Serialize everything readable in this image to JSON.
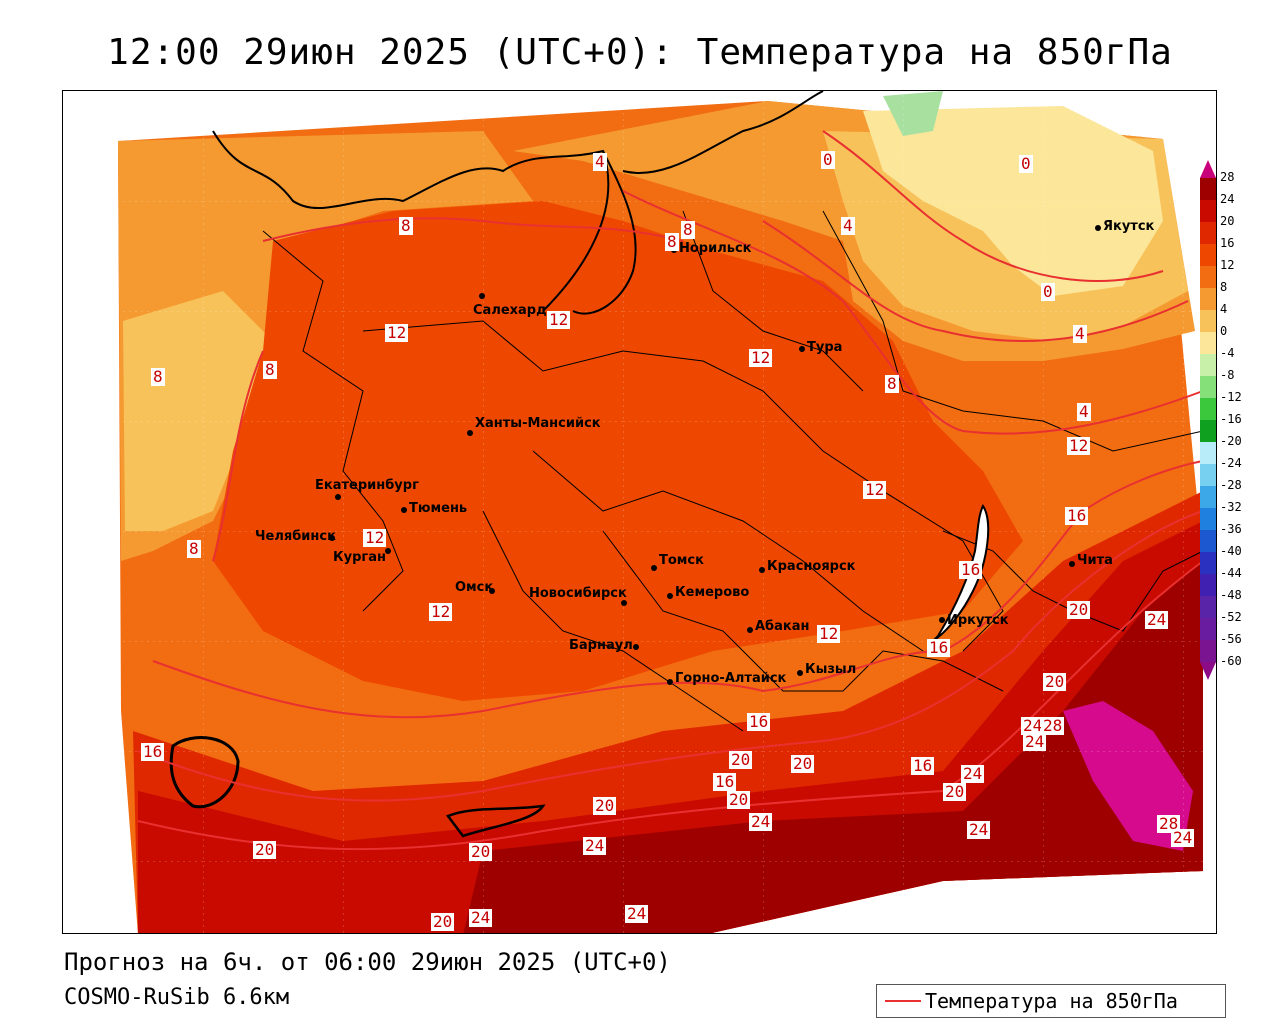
{
  "title": "12:00 29июн 2025 (UTC+0): Температура на 850гПа",
  "footer": {
    "forecast": "Прогноз на 6ч. от 06:00 29июн 2025 (UTC+0)",
    "model": "COSMO-RuSib 6.6км"
  },
  "legend_box": {
    "label": "Температура на 850гПа",
    "line_color": "#e83030"
  },
  "colorbar": {
    "ticks": [
      "28",
      "24",
      "20",
      "16",
      "12",
      "8",
      "4",
      "0",
      "-4",
      "-8",
      "-12",
      "-16",
      "-20",
      "-24",
      "-28",
      "-32",
      "-36",
      "-40",
      "-44",
      "-48",
      "-52",
      "-56",
      "-60"
    ],
    "colors": [
      "#c8007a",
      "#9e0000",
      "#c80a00",
      "#e02800",
      "#ee4800",
      "#f26c12",
      "#f59a30",
      "#f8c25a",
      "#fbe69a",
      "#c8f0a8",
      "#86e07a",
      "#3cc83c",
      "#10a020",
      "#b8ecf8",
      "#78d0f0",
      "#3ca8e8",
      "#2080e0",
      "#1c58d0",
      "#2a30c0",
      "#4020b0",
      "#5a24a8",
      "#6a1ca0",
      "#7a1490",
      "#8c0c88"
    ]
  },
  "cities": [
    {
      "name": "Якутск"
    },
    {
      "name": "Норильск"
    },
    {
      "name": "Салехард"
    },
    {
      "name": "Тура"
    },
    {
      "name": "Ханты-Мансийск"
    },
    {
      "name": "Екатеринбург"
    },
    {
      "name": "Тюмень"
    },
    {
      "name": "Челябинск"
    },
    {
      "name": "Курган"
    },
    {
      "name": "Омск"
    },
    {
      "name": "Новосибирск"
    },
    {
      "name": "Томск"
    },
    {
      "name": "Кемерово"
    },
    {
      "name": "Красноярск"
    },
    {
      "name": "Барнаул"
    },
    {
      "name": "Абакан"
    },
    {
      "name": "Горно-Алтайск"
    },
    {
      "name": "Кызыл"
    },
    {
      "name": "Иркутск"
    },
    {
      "name": "Чита"
    }
  ],
  "contour_labels": [
    "4",
    "0",
    "0",
    "8",
    "8",
    "8",
    "4",
    "0",
    "4",
    "12",
    "12",
    "12",
    "8",
    "8",
    "8",
    "4",
    "12",
    "12",
    "12",
    "16",
    "8",
    "12",
    "16",
    "20",
    "12",
    "24",
    "20",
    "16",
    "16",
    "24",
    "16",
    "28",
    "24",
    "20",
    "16",
    "20",
    "16",
    "20",
    "24",
    "24",
    "24",
    "20",
    "20",
    "28",
    "24",
    "20",
    "20",
    "24",
    "20",
    "24",
    "24"
  ]
}
